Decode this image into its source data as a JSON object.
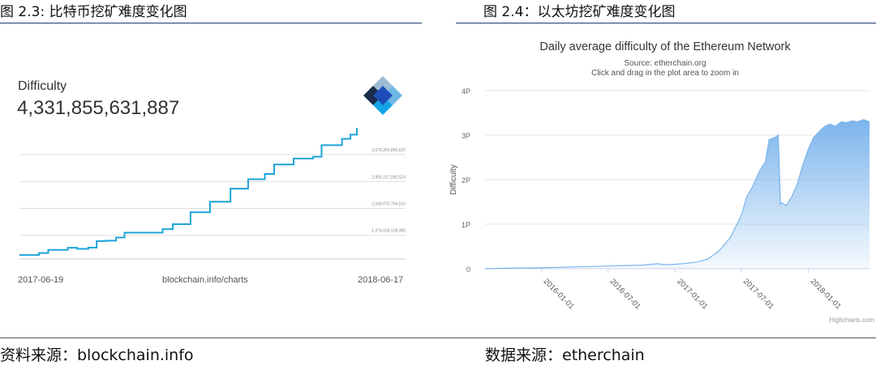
{
  "left_figure": {
    "caption": "图 2.3: 比特币挖矿难度变化图",
    "source": "资料来源：blockchain.info",
    "difficulty_label": "Difficulty",
    "difficulty_value": "4,331,855,631,887",
    "logo_icon": "blockchain-logo-icon",
    "line_color": "#1fa3d8"
  },
  "right_figure": {
    "caption": "图 2.4：以太坊挖矿难度变化图",
    "source": "数据来源：etherchain",
    "credit": "Highcharts.com",
    "area_color": "#7cb5ec"
  },
  "chart_data": [
    {
      "type": "line",
      "title": "",
      "x_start_label": "2017-06-19",
      "x_center_label": "blockchain.info/charts",
      "x_end_label": "2018-06-17",
      "gridline_labels": [
        "3,570,363,856,537",
        "2,805,217,280,524",
        "2,040,070,704,510",
        "1,274,924,128,496"
      ],
      "gridline_values": [
        3570363856537,
        2805217280524,
        2040070704510,
        1274924128496
      ],
      "ylim": [
        600000000000,
        4331855631887
      ],
      "grid": true,
      "series": [
        {
          "x": [
            "2017-06-19",
            "2017-07-01",
            "2017-07-10",
            "2017-07-20",
            "2017-08-01",
            "2017-08-10",
            "2017-08-20",
            "2017-09-01",
            "2017-09-10",
            "2017-09-20",
            "2017-10-01",
            "2017-10-10",
            "2017-10-20",
            "2017-11-01",
            "2017-11-10",
            "2017-11-20",
            "2017-12-01",
            "2017-12-10",
            "2017-12-20",
            "2018-01-01",
            "2018-01-10",
            "2018-01-20",
            "2018-02-01",
            "2018-02-10",
            "2018-02-20",
            "2018-03-01",
            "2018-03-10",
            "2018-03-20",
            "2018-04-01",
            "2018-04-10",
            "2018-04-20",
            "2018-05-01",
            "2018-05-10",
            "2018-05-20",
            "2018-06-01",
            "2018-06-10",
            "2018-06-17"
          ],
          "y": [
            711000000000,
            711000000000,
            770000000000,
            860000000000,
            860000000000,
            920000000000,
            888000000000,
            923000000000,
            1110000000000,
            1120000000000,
            1210000000000,
            1350000000000,
            1350000000000,
            1350000000000,
            1350000000000,
            1450000000000,
            1590000000000,
            1590000000000,
            1930000000000,
            1930000000000,
            2230000000000,
            2230000000000,
            2600000000000,
            2600000000000,
            2870000000000,
            2870000000000,
            3020000000000,
            3290000000000,
            3290000000000,
            3460000000000,
            3460000000000,
            3510000000000,
            3840000000000,
            3840000000000,
            4020000000000,
            4140000000000,
            4330000000000
          ]
        }
      ]
    },
    {
      "type": "area",
      "title": "Daily average difficulty of the Ethereum Network",
      "subtitle": "Source: etherchain.org",
      "subtitle2": "Click and drag in the plot area to zoom in",
      "ylabel": "Difficulty",
      "y_ticks": [
        "0",
        "1P",
        "2P",
        "3P",
        "4P"
      ],
      "y_tick_values": [
        0,
        1,
        2,
        3,
        4
      ],
      "x_ticks": [
        "2016-01-01",
        "2016-07-01",
        "2017-01-01",
        "2017-07-01",
        "2018-01-01"
      ],
      "ylim": [
        0,
        4
      ],
      "xlim": [
        "2015-07-30",
        "2018-06-17"
      ],
      "grid": true,
      "series": [
        {
          "unit": "P",
          "x": [
            "2015-07-30",
            "2015-10-01",
            "2016-01-01",
            "2016-04-01",
            "2016-07-01",
            "2016-10-01",
            "2016-11-15",
            "2016-12-01",
            "2017-01-01",
            "2017-02-01",
            "2017-03-01",
            "2017-04-01",
            "2017-05-01",
            "2017-06-01",
            "2017-07-01",
            "2017-07-15",
            "2017-08-01",
            "2017-08-20",
            "2017-09-05",
            "2017-09-15",
            "2017-10-01",
            "2017-10-10",
            "2017-10-16",
            "2017-10-20",
            "2017-11-01",
            "2017-11-15",
            "2017-12-01",
            "2017-12-15",
            "2018-01-01",
            "2018-01-15",
            "2018-02-01",
            "2018-02-15",
            "2018-03-01",
            "2018-03-15",
            "2018-04-01",
            "2018-04-15",
            "2018-05-01",
            "2018-05-15",
            "2018-06-01",
            "2018-06-17"
          ],
          "y": [
            0.0,
            0.01,
            0.02,
            0.04,
            0.06,
            0.08,
            0.11,
            0.09,
            0.1,
            0.12,
            0.15,
            0.22,
            0.4,
            0.7,
            1.2,
            1.6,
            1.85,
            2.2,
            2.4,
            2.9,
            2.95,
            3.0,
            1.45,
            1.48,
            1.42,
            1.6,
            1.9,
            2.3,
            2.7,
            2.95,
            3.1,
            3.2,
            3.25,
            3.2,
            3.3,
            3.28,
            3.32,
            3.3,
            3.35,
            3.3
          ]
        }
      ]
    }
  ]
}
